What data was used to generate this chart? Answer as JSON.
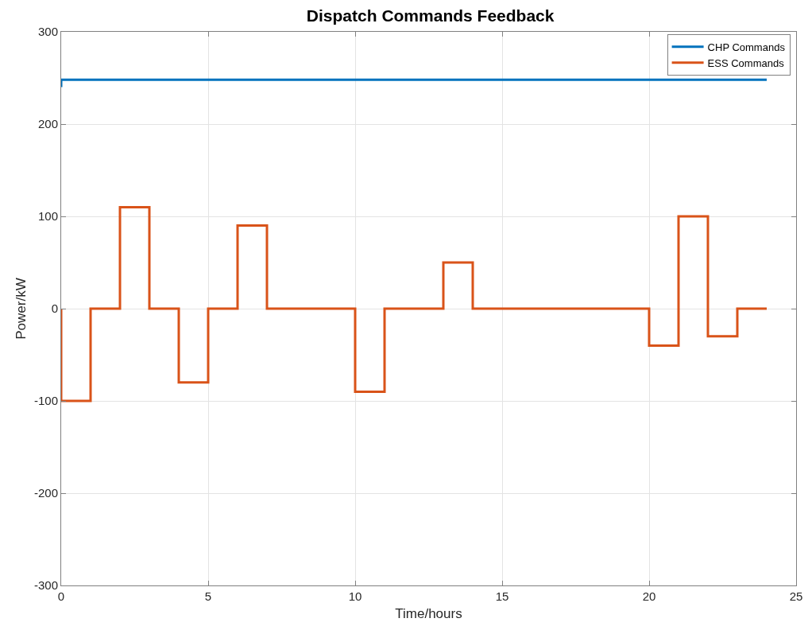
{
  "chart_data": {
    "type": "step",
    "title": "Dispatch Commands Feedback",
    "xlabel": "Time/hours",
    "ylabel": "Power/kW",
    "xlim": [
      0,
      25
    ],
    "xticks": [
      0,
      5,
      10,
      15,
      20,
      25
    ],
    "ylim": [
      -300,
      300
    ],
    "yticks": [
      -300,
      -200,
      -100,
      0,
      100,
      200,
      300
    ],
    "grid": true,
    "legend": "top right",
    "series": [
      {
        "name": "CHP Commands",
        "color": "#0072bd",
        "x": [
          0,
          0,
          24
        ],
        "values": [
          240,
          248,
          248
        ]
      },
      {
        "name": "ESS Commands",
        "color": "#d95319",
        "x": [
          0,
          0,
          1,
          2,
          3,
          4,
          5,
          6,
          7,
          10,
          11,
          13,
          14,
          20,
          21,
          22,
          23,
          24
        ],
        "values": [
          0,
          -100,
          0,
          110,
          0,
          -80,
          0,
          90,
          0,
          -90,
          0,
          50,
          0,
          -40,
          100,
          -30,
          0,
          0
        ]
      }
    ]
  }
}
